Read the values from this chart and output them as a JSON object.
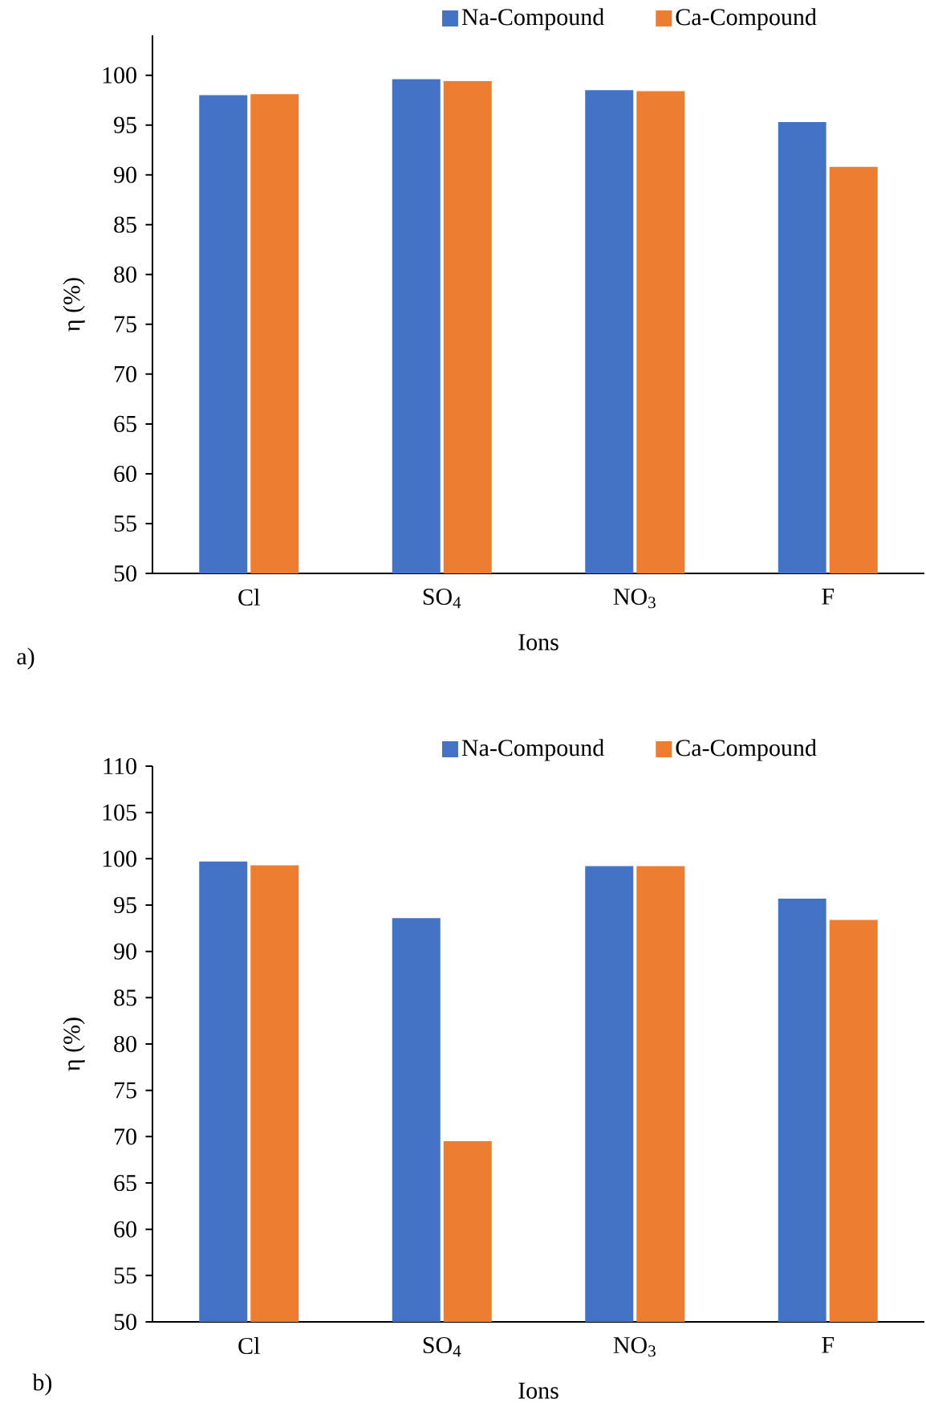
{
  "chart_data": [
    {
      "type": "bar",
      "xlabel": "Ions",
      "ylabel": "η (%)",
      "categories": [
        "Cl",
        "SO$_{4}$",
        "NO$_{3}$",
        "F"
      ],
      "series": [
        {
          "name": "Na-Compound",
          "color": "#4472c4",
          "values": [
            98.0,
            99.6,
            98.5,
            95.3
          ]
        },
        {
          "name": "Ca-Compound",
          "color": "#ed7d31",
          "values": [
            98.1,
            99.4,
            98.4,
            90.8
          ]
        }
      ],
      "ylim": [
        50,
        104
      ],
      "yticks": [
        50,
        55,
        60,
        65,
        70,
        75,
        80,
        85,
        90,
        95,
        100
      ],
      "legend": "top",
      "annotations": [
        "a)"
      ]
    },
    {
      "type": "bar",
      "xlabel": "Ions",
      "ylabel": "η (%)",
      "categories": [
        "Cl",
        "SO$_{4}$",
        "NO$_{3}$",
        "F"
      ],
      "series": [
        {
          "name": "Na-Compound",
          "color": "#4472c4",
          "values": [
            99.7,
            93.6,
            99.2,
            95.7
          ]
        },
        {
          "name": "Ca-Compound",
          "color": "#ed7d31",
          "values": [
            99.3,
            69.5,
            99.2,
            93.4
          ]
        }
      ],
      "ylim": [
        50,
        110
      ],
      "yticks": [
        50,
        55,
        60,
        65,
        70,
        75,
        80,
        85,
        90,
        95,
        100,
        105,
        110
      ],
      "legend": "top",
      "annotations": [
        "b)"
      ]
    }
  ]
}
